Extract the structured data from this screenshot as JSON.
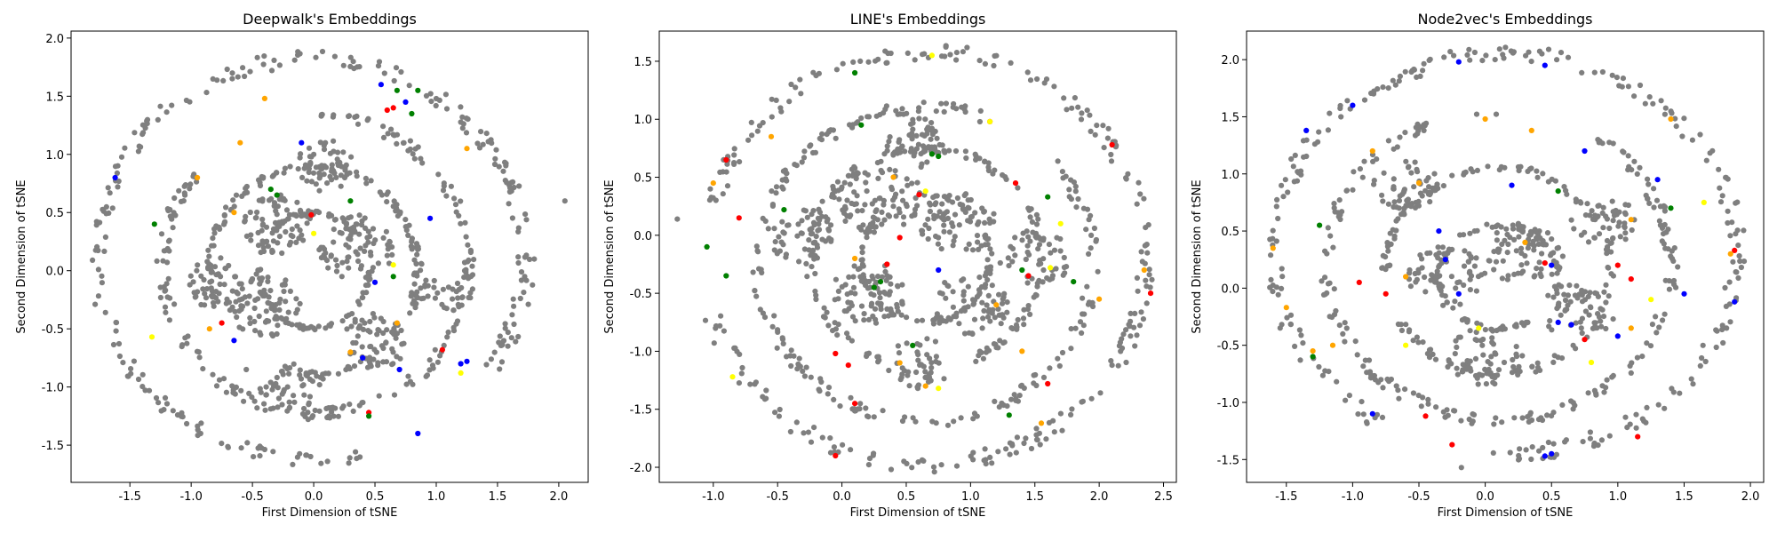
{
  "chart_data": [
    {
      "type": "scatter",
      "title": "Deepwalk's Embeddings",
      "xlabel": "First Dimension of tSNE",
      "ylabel": "Second Dimension of tSNE",
      "xlim": [
        -1.98,
        2.24
      ],
      "ylim": [
        -1.82,
        2.06
      ],
      "xticks": [
        -1.5,
        -1.0,
        -0.5,
        0.0,
        0.5,
        1.0,
        1.5,
        2.0
      ],
      "yticks": [
        -1.5,
        -1.0,
        -0.5,
        0.0,
        0.5,
        1.0,
        1.5,
        2.0
      ],
      "grid": false,
      "colors": {
        "default": "#7f7f7f",
        "red": "#ff0000",
        "blue": "#0000ff",
        "green": "#008000",
        "orange": "#ffa500",
        "yellow": "#ffff00"
      },
      "background_rings": [
        {
          "cx": -0.02,
          "cy": 0.1,
          "rx": 1.75,
          "ry": 1.72,
          "gap_start": -75,
          "gap_end": -35,
          "count": 260
        },
        {
          "cx": 0.02,
          "cy": 0.05,
          "rx": 1.25,
          "ry": 1.28,
          "gap_start": 90,
          "gap_end": 140,
          "count": 220
        },
        {
          "cx": 0.0,
          "cy": 0.0,
          "rx": 0.85,
          "ry": 0.9,
          "gap_start": 200,
          "gap_end": 250,
          "count": 180
        },
        {
          "cx": 0.0,
          "cy": 0.0,
          "rx": 0.45,
          "ry": 0.5,
          "gap_start": 0,
          "gap_end": 40,
          "count": 110
        }
      ],
      "background_clusters": [
        {
          "x": -0.3,
          "y": 0.4,
          "r": 0.28,
          "count": 70
        },
        {
          "x": 0.35,
          "y": 0.2,
          "r": 0.32,
          "count": 80
        },
        {
          "x": -0.4,
          "y": -0.3,
          "r": 0.3,
          "count": 70
        },
        {
          "x": 0.5,
          "y": -0.6,
          "r": 0.28,
          "count": 55
        },
        {
          "x": -0.8,
          "y": -0.1,
          "r": 0.25,
          "count": 45
        },
        {
          "x": 0.1,
          "y": 0.9,
          "r": 0.25,
          "count": 45
        },
        {
          "x": 1.0,
          "y": -0.2,
          "r": 0.22,
          "count": 35
        },
        {
          "x": -0.2,
          "y": -1.0,
          "r": 0.25,
          "count": 40
        }
      ],
      "extra_points": [
        {
          "x": 2.05,
          "y": 0.6
        },
        {
          "x": -0.55,
          "y": -0.85
        }
      ],
      "highlights": [
        {
          "x": -0.02,
          "y": 0.48,
          "color": "red"
        },
        {
          "x": 0.65,
          "y": 1.4,
          "color": "red"
        },
        {
          "x": 1.05,
          "y": -0.68,
          "color": "red"
        },
        {
          "x": 0.45,
          "y": -1.22,
          "color": "red"
        },
        {
          "x": -0.75,
          "y": -0.45,
          "color": "red"
        },
        {
          "x": 0.6,
          "y": 1.38,
          "color": "red"
        },
        {
          "x": 0.55,
          "y": 1.6,
          "color": "blue"
        },
        {
          "x": 0.75,
          "y": 1.45,
          "color": "blue"
        },
        {
          "x": 0.95,
          "y": 0.45,
          "color": "blue"
        },
        {
          "x": 1.2,
          "y": -0.8,
          "color": "blue"
        },
        {
          "x": 1.25,
          "y": -0.78,
          "color": "blue"
        },
        {
          "x": 0.4,
          "y": -0.75,
          "color": "blue"
        },
        {
          "x": 0.5,
          "y": -0.1,
          "color": "blue"
        },
        {
          "x": -0.65,
          "y": -0.6,
          "color": "blue"
        },
        {
          "x": -1.62,
          "y": 0.8,
          "color": "blue"
        },
        {
          "x": 0.85,
          "y": -1.4,
          "color": "blue"
        },
        {
          "x": -0.1,
          "y": 1.1,
          "color": "blue"
        },
        {
          "x": 0.7,
          "y": -0.85,
          "color": "blue"
        },
        {
          "x": 0.68,
          "y": 1.55,
          "color": "green"
        },
        {
          "x": 0.85,
          "y": 1.55,
          "color": "green"
        },
        {
          "x": 0.8,
          "y": 1.35,
          "color": "green"
        },
        {
          "x": -0.35,
          "y": 0.7,
          "color": "green"
        },
        {
          "x": -0.3,
          "y": 0.65,
          "color": "green"
        },
        {
          "x": -1.3,
          "y": 0.4,
          "color": "green"
        },
        {
          "x": 0.65,
          "y": -0.05,
          "color": "green"
        },
        {
          "x": 0.3,
          "y": 0.6,
          "color": "green"
        },
        {
          "x": 0.45,
          "y": -1.25,
          "color": "green"
        },
        {
          "x": -0.6,
          "y": 1.1,
          "color": "orange"
        },
        {
          "x": -0.65,
          "y": 0.5,
          "color": "orange"
        },
        {
          "x": 0.3,
          "y": -0.7,
          "color": "orange"
        },
        {
          "x": 0.68,
          "y": -0.45,
          "color": "orange"
        },
        {
          "x": -0.85,
          "y": -0.5,
          "color": "orange"
        },
        {
          "x": -0.95,
          "y": 0.8,
          "color": "orange"
        },
        {
          "x": -0.4,
          "y": 1.48,
          "color": "orange"
        },
        {
          "x": 1.25,
          "y": 1.05,
          "color": "orange"
        },
        {
          "x": -1.32,
          "y": -0.57,
          "color": "yellow"
        },
        {
          "x": 0.0,
          "y": 0.32,
          "color": "yellow"
        },
        {
          "x": 0.65,
          "y": 0.05,
          "color": "yellow"
        },
        {
          "x": 1.2,
          "y": -0.88,
          "color": "yellow"
        }
      ]
    },
    {
      "type": "scatter",
      "title": "LINE's Embeddings",
      "xlabel": "First Dimension of tSNE",
      "ylabel": "Second Dimension of tSNE",
      "xlim": [
        -1.42,
        2.6
      ],
      "ylim": [
        -2.13,
        1.76
      ],
      "xticks": [
        -1.0,
        -0.5,
        0.0,
        0.5,
        1.0,
        1.5,
        2.0,
        2.5
      ],
      "yticks": [
        -2.0,
        -1.5,
        -1.0,
        -0.5,
        0.0,
        0.5,
        1.0,
        1.5
      ],
      "grid": false,
      "colors": {
        "default": "#7f7f7f",
        "red": "#ff0000",
        "blue": "#0000ff",
        "green": "#008000",
        "orange": "#ffa500",
        "yellow": "#ffff00"
      },
      "background_rings": [
        {
          "cx": 0.65,
          "cy": -0.2,
          "rx": 1.72,
          "ry": 1.78,
          "gap_start": 170,
          "gap_end": 195,
          "count": 260
        },
        {
          "cx": 0.65,
          "cy": -0.25,
          "rx": 1.3,
          "ry": 1.35,
          "gap_start": 40,
          "gap_end": 70,
          "count": 220
        },
        {
          "cx": 0.65,
          "cy": -0.2,
          "rx": 0.9,
          "ry": 0.95,
          "gap_start": 250,
          "gap_end": 290,
          "count": 180
        },
        {
          "cx": 0.65,
          "cy": -0.2,
          "rx": 0.5,
          "ry": 0.55,
          "gap_start": 100,
          "gap_end": 140,
          "count": 110
        }
      ],
      "background_clusters": [
        {
          "x": 0.3,
          "y": 0.3,
          "r": 0.35,
          "count": 80
        },
        {
          "x": 0.9,
          "y": 0.1,
          "r": 0.3,
          "count": 70
        },
        {
          "x": 0.2,
          "y": -0.5,
          "r": 0.3,
          "count": 70
        },
        {
          "x": 1.0,
          "y": -0.6,
          "r": 0.3,
          "count": 60
        },
        {
          "x": -0.3,
          "y": 0.0,
          "r": 0.28,
          "count": 50
        },
        {
          "x": 1.5,
          "y": -0.2,
          "r": 0.28,
          "count": 50
        },
        {
          "x": 0.6,
          "y": 0.8,
          "r": 0.25,
          "count": 45
        },
        {
          "x": 0.6,
          "y": -1.1,
          "r": 0.25,
          "count": 45
        }
      ],
      "extra_points": [
        {
          "x": -1.28,
          "y": 0.14
        }
      ],
      "highlights": [
        {
          "x": -0.9,
          "y": 0.65,
          "color": "red"
        },
        {
          "x": -0.8,
          "y": 0.15,
          "color": "red"
        },
        {
          "x": 0.05,
          "y": -1.12,
          "color": "red"
        },
        {
          "x": 0.1,
          "y": -1.45,
          "color": "red"
        },
        {
          "x": -0.05,
          "y": -1.9,
          "color": "red"
        },
        {
          "x": 0.45,
          "y": -0.02,
          "color": "red"
        },
        {
          "x": 1.35,
          "y": 0.45,
          "color": "red"
        },
        {
          "x": 1.15,
          "y": 0.98,
          "color": "red"
        },
        {
          "x": 2.1,
          "y": 0.78,
          "color": "red"
        },
        {
          "x": 1.45,
          "y": -0.35,
          "color": "red"
        },
        {
          "x": 0.35,
          "y": -0.25,
          "color": "red"
        },
        {
          "x": 0.6,
          "y": 0.35,
          "color": "red"
        },
        {
          "x": 1.6,
          "y": -1.28,
          "color": "red"
        },
        {
          "x": 2.4,
          "y": -0.5,
          "color": "red"
        },
        {
          "x": -0.05,
          "y": -1.02,
          "color": "red"
        },
        {
          "x": 0.75,
          "y": -0.3,
          "color": "blue"
        },
        {
          "x": -1.05,
          "y": -0.1,
          "color": "green"
        },
        {
          "x": -0.9,
          "y": -0.35,
          "color": "green"
        },
        {
          "x": 0.1,
          "y": 1.4,
          "color": "green"
        },
        {
          "x": 0.15,
          "y": 0.95,
          "color": "green"
        },
        {
          "x": 0.7,
          "y": 0.7,
          "color": "green"
        },
        {
          "x": 0.75,
          "y": 0.68,
          "color": "green"
        },
        {
          "x": 0.55,
          "y": -0.95,
          "color": "green"
        },
        {
          "x": 0.3,
          "y": -0.4,
          "color": "green"
        },
        {
          "x": 1.4,
          "y": -0.3,
          "color": "green"
        },
        {
          "x": 1.6,
          "y": 0.33,
          "color": "green"
        },
        {
          "x": 1.8,
          "y": -0.4,
          "color": "green"
        },
        {
          "x": 1.3,
          "y": -1.55,
          "color": "green"
        },
        {
          "x": -0.45,
          "y": 0.22,
          "color": "green"
        },
        {
          "x": 0.25,
          "y": -0.45,
          "color": "green"
        },
        {
          "x": -1.0,
          "y": 0.45,
          "color": "orange"
        },
        {
          "x": -0.55,
          "y": 0.85,
          "color": "orange"
        },
        {
          "x": 0.4,
          "y": 0.5,
          "color": "orange"
        },
        {
          "x": 0.1,
          "y": -0.2,
          "color": "orange"
        },
        {
          "x": 1.2,
          "y": -0.6,
          "color": "orange"
        },
        {
          "x": 1.4,
          "y": -1.0,
          "color": "orange"
        },
        {
          "x": 2.0,
          "y": -0.55,
          "color": "orange"
        },
        {
          "x": 2.35,
          "y": -0.3,
          "color": "orange"
        },
        {
          "x": 0.65,
          "y": -1.3,
          "color": "orange"
        },
        {
          "x": 1.55,
          "y": -1.62,
          "color": "orange"
        },
        {
          "x": 0.45,
          "y": -1.1,
          "color": "orange"
        },
        {
          "x": 0.7,
          "y": 1.55,
          "color": "yellow"
        },
        {
          "x": 1.15,
          "y": 0.98,
          "color": "yellow"
        },
        {
          "x": 1.62,
          "y": -0.28,
          "color": "yellow"
        },
        {
          "x": -0.85,
          "y": -1.22,
          "color": "yellow"
        },
        {
          "x": 0.65,
          "y": 0.38,
          "color": "yellow"
        },
        {
          "x": 1.7,
          "y": 0.1,
          "color": "yellow"
        },
        {
          "x": 0.75,
          "y": -1.32,
          "color": "yellow"
        }
      ]
    },
    {
      "type": "scatter",
      "title": "Node2vec's Embeddings",
      "xlabel": "First Dimension of tSNE",
      "ylabel": "Second Dimension of tSNE",
      "xlim": [
        -1.8,
        2.1
      ],
      "ylim": [
        -1.7,
        2.25
      ],
      "xticks": [
        -1.5,
        -1.0,
        -0.5,
        0.0,
        0.5,
        1.0,
        1.5,
        2.0
      ],
      "yticks": [
        -1.5,
        -1.0,
        -0.5,
        0.0,
        0.5,
        1.0,
        1.5,
        2.0
      ],
      "grid": false,
      "colors": {
        "default": "#7f7f7f",
        "red": "#ff0000",
        "blue": "#0000ff",
        "green": "#008000",
        "orange": "#ffa500",
        "yellow": "#ffff00"
      },
      "background_rings": [
        {
          "cx": 0.15,
          "cy": 0.3,
          "rx": 1.75,
          "ry": 1.75,
          "gap_start": -120,
          "gap_end": -95,
          "count": 260
        },
        {
          "cx": 0.1,
          "cy": 0.2,
          "rx": 1.3,
          "ry": 1.35,
          "gap_start": 60,
          "gap_end": 90,
          "count": 220
        },
        {
          "cx": 0.1,
          "cy": 0.15,
          "rx": 0.85,
          "ry": 0.9,
          "gap_start": 180,
          "gap_end": 210,
          "count": 170
        },
        {
          "cx": 0.1,
          "cy": 0.1,
          "rx": 0.45,
          "ry": 0.45,
          "gap_start": 300,
          "gap_end": 330,
          "count": 100
        }
      ],
      "background_clusters": [
        {
          "x": 0.3,
          "y": 0.3,
          "r": 0.3,
          "count": 70
        },
        {
          "x": -0.3,
          "y": 0.1,
          "r": 0.3,
          "count": 60
        },
        {
          "x": 0.7,
          "y": -0.2,
          "r": 0.28,
          "count": 55
        },
        {
          "x": 0.0,
          "y": -0.6,
          "r": 0.28,
          "count": 55
        },
        {
          "x": 0.9,
          "y": 0.6,
          "r": 0.25,
          "count": 45
        },
        {
          "x": -0.6,
          "y": 0.9,
          "r": 0.25,
          "count": 45
        }
      ],
      "extra_points": [
        {
          "x": -0.18,
          "y": -1.57
        }
      ],
      "highlights": [
        {
          "x": -0.95,
          "y": 0.05,
          "color": "red"
        },
        {
          "x": -0.75,
          "y": -0.05,
          "color": "red"
        },
        {
          "x": -0.45,
          "y": -1.12,
          "color": "red"
        },
        {
          "x": -0.25,
          "y": -1.37,
          "color": "red"
        },
        {
          "x": 0.45,
          "y": 0.22,
          "color": "red"
        },
        {
          "x": 1.0,
          "y": 0.2,
          "color": "red"
        },
        {
          "x": 1.1,
          "y": 0.08,
          "color": "red"
        },
        {
          "x": 1.88,
          "y": 0.33,
          "color": "red"
        },
        {
          "x": 1.15,
          "y": -1.3,
          "color": "red"
        },
        {
          "x": 0.75,
          "y": -0.45,
          "color": "red"
        },
        {
          "x": -1.35,
          "y": 1.38,
          "color": "blue"
        },
        {
          "x": -1.0,
          "y": 1.6,
          "color": "blue"
        },
        {
          "x": -0.2,
          "y": 1.98,
          "color": "blue"
        },
        {
          "x": 0.45,
          "y": 1.95,
          "color": "blue"
        },
        {
          "x": 0.2,
          "y": 0.9,
          "color": "blue"
        },
        {
          "x": 0.75,
          "y": 1.2,
          "color": "blue"
        },
        {
          "x": 1.3,
          "y": 0.95,
          "color": "blue"
        },
        {
          "x": -0.35,
          "y": 0.5,
          "color": "blue"
        },
        {
          "x": -0.3,
          "y": 0.25,
          "color": "blue"
        },
        {
          "x": -0.2,
          "y": -0.05,
          "color": "blue"
        },
        {
          "x": 0.55,
          "y": -0.3,
          "color": "blue"
        },
        {
          "x": 0.65,
          "y": -0.32,
          "color": "blue"
        },
        {
          "x": 1.0,
          "y": -0.42,
          "color": "blue"
        },
        {
          "x": 1.5,
          "y": -0.05,
          "color": "blue"
        },
        {
          "x": 1.88,
          "y": -0.12,
          "color": "blue"
        },
        {
          "x": 0.5,
          "y": -1.45,
          "color": "blue"
        },
        {
          "x": 0.45,
          "y": -1.47,
          "color": "blue"
        },
        {
          "x": -0.85,
          "y": -1.1,
          "color": "blue"
        },
        {
          "x": 0.5,
          "y": 0.2,
          "color": "blue"
        },
        {
          "x": -1.3,
          "y": -0.6,
          "color": "green"
        },
        {
          "x": -1.25,
          "y": 0.55,
          "color": "green"
        },
        {
          "x": 0.55,
          "y": 0.85,
          "color": "green"
        },
        {
          "x": 1.4,
          "y": 0.7,
          "color": "green"
        },
        {
          "x": -1.5,
          "y": -0.17,
          "color": "orange"
        },
        {
          "x": -0.85,
          "y": 1.2,
          "color": "orange"
        },
        {
          "x": -0.5,
          "y": 0.92,
          "color": "orange"
        },
        {
          "x": 0.0,
          "y": 1.48,
          "color": "orange"
        },
        {
          "x": 0.35,
          "y": 1.38,
          "color": "orange"
        },
        {
          "x": -0.6,
          "y": 0.1,
          "color": "orange"
        },
        {
          "x": 0.3,
          "y": 0.4,
          "color": "orange"
        },
        {
          "x": 1.1,
          "y": 0.6,
          "color": "orange"
        },
        {
          "x": 1.4,
          "y": 1.48,
          "color": "orange"
        },
        {
          "x": -1.3,
          "y": -0.55,
          "color": "orange"
        },
        {
          "x": -1.15,
          "y": -0.5,
          "color": "orange"
        },
        {
          "x": 1.1,
          "y": -0.35,
          "color": "orange"
        },
        {
          "x": -1.6,
          "y": 0.35,
          "color": "orange"
        },
        {
          "x": 1.85,
          "y": 0.3,
          "color": "orange"
        },
        {
          "x": 1.65,
          "y": 0.75,
          "color": "yellow"
        },
        {
          "x": 1.25,
          "y": -0.1,
          "color": "yellow"
        },
        {
          "x": -0.6,
          "y": -0.5,
          "color": "yellow"
        },
        {
          "x": -0.05,
          "y": -0.35,
          "color": "yellow"
        },
        {
          "x": 0.8,
          "y": -0.65,
          "color": "yellow"
        }
      ]
    }
  ]
}
